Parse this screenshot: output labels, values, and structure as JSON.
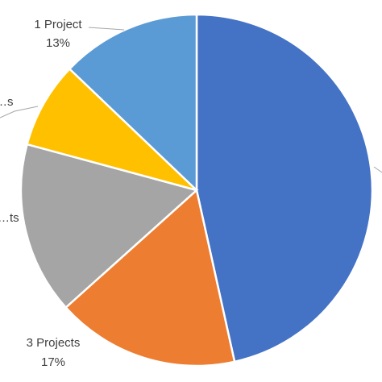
{
  "chart_data": {
    "type": "pie",
    "slices": [
      {
        "label": "",
        "percent_text": "",
        "value": 47,
        "color": "#4472C4"
      },
      {
        "label": "3 Projects",
        "percent_text": "17%",
        "value": 17,
        "color": "#ED7D31"
      },
      {
        "label": "…ts",
        "percent_text": "",
        "value": 16,
        "color": "#A5A5A5"
      },
      {
        "label": "…s",
        "percent_text": "",
        "value": 8,
        "color": "#FFC000"
      },
      {
        "label": "1 Project",
        "percent_text": "13%",
        "value": 13,
        "color": "#5B9BD5"
      }
    ],
    "start_angle_deg": 0,
    "direction": "clockwise"
  }
}
